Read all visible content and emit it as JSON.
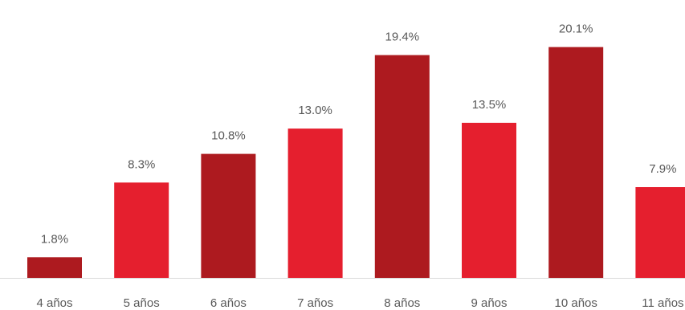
{
  "chart_data": {
    "type": "bar",
    "categories": [
      "4 años",
      "5 años",
      "6 años",
      "7 años",
      "8 años",
      "9 años",
      "10 años",
      "11 años"
    ],
    "values": [
      1.8,
      8.3,
      10.8,
      13.0,
      19.4,
      13.5,
      20.1,
      7.9
    ],
    "data_labels": [
      "1.8%",
      "8.3%",
      "10.8%",
      "13.0%",
      "19.4%",
      "13.5%",
      "20.1%",
      "7.9%"
    ],
    "bar_colors": [
      "#AD1A1F",
      "#E51F2E",
      "#AD1A1F",
      "#E51F2E",
      "#AD1A1F",
      "#E51F2E",
      "#AD1A1F",
      "#E51F2E"
    ],
    "value_unit": "%",
    "ylim": [
      0,
      22
    ],
    "grid": false,
    "legend": "none",
    "title": "",
    "xlabel": "",
    "ylabel": ""
  }
}
